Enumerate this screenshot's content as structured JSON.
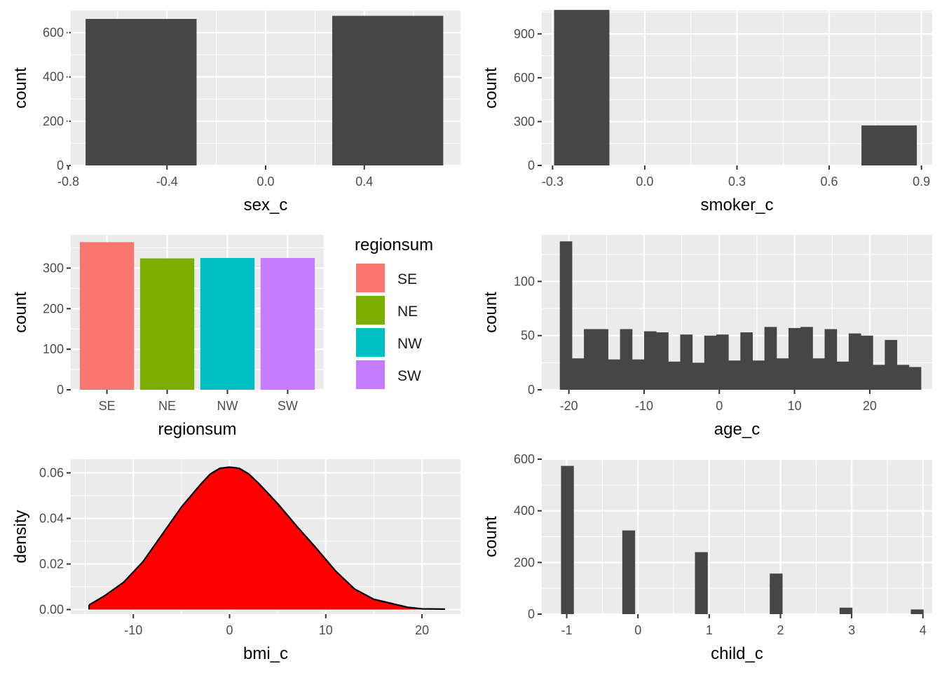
{
  "chart_data": [
    {
      "id": "sex",
      "type": "bar",
      "xlabel": "sex_c",
      "ylabel": "count",
      "xlim": [
        -0.79,
        0.79
      ],
      "ylim": [
        0,
        700
      ],
      "xticks": [
        -0.8,
        -0.4,
        0.0,
        0.4
      ],
      "xtick_labels": [
        "-0.8",
        "-0.4",
        "0.0",
        "0.4"
      ],
      "yticks": [
        0,
        200,
        400,
        600
      ],
      "ytick_labels": [
        "0",
        "200",
        "400",
        "600"
      ],
      "grid": true,
      "fill_color": "#464646",
      "bars": [
        {
          "x0": -0.73,
          "x1": -0.28,
          "value": 662
        },
        {
          "x0": 0.27,
          "x1": 0.72,
          "value": 676
        }
      ]
    },
    {
      "id": "smoker",
      "type": "bar",
      "xlabel": "smoker_c",
      "ylabel": "count",
      "xlim": [
        -0.335,
        0.935
      ],
      "ylim": [
        0,
        1060
      ],
      "xticks": [
        -0.3,
        0.0,
        0.3,
        0.6,
        0.9
      ],
      "xtick_labels": [
        "-0.3",
        "0.0",
        "0.3",
        "0.6",
        "0.9"
      ],
      "yticks": [
        0,
        300,
        600,
        900
      ],
      "ytick_labels": [
        "0",
        "300",
        "600",
        "900"
      ],
      "grid": true,
      "fill_color": "#464646",
      "bars": [
        {
          "x0": -0.295,
          "x1": -0.115,
          "value": 1064
        },
        {
          "x0": 0.705,
          "x1": 0.885,
          "value": 274
        }
      ]
    },
    {
      "id": "region",
      "type": "bar",
      "xlabel": "regionsum",
      "ylabel": "count",
      "categories": [
        "SE",
        "NE",
        "NW",
        "SW"
      ],
      "values": [
        364,
        324,
        325,
        325
      ],
      "colors": [
        "#F8766D",
        "#7CAE00",
        "#00BFC4",
        "#C77CFF"
      ],
      "ylim": [
        0,
        382
      ],
      "yticks": [
        0,
        100,
        200,
        300
      ],
      "ytick_labels": [
        "0",
        "100",
        "200",
        "300"
      ],
      "grid": true,
      "legend": {
        "title": "regionsum",
        "placement": "right",
        "items": [
          {
            "label": "SE",
            "color": "#F8766D"
          },
          {
            "label": "NE",
            "color": "#7CAE00"
          },
          {
            "label": "NW",
            "color": "#00BFC4"
          },
          {
            "label": "SW",
            "color": "#C77CFF"
          }
        ]
      }
    },
    {
      "id": "age",
      "type": "bar",
      "xlabel": "age_c",
      "ylabel": "count",
      "xlim": [
        -23.6,
        28.3
      ],
      "ylim": [
        0,
        143
      ],
      "xticks": [
        -20,
        -10,
        0,
        10,
        20
      ],
      "xtick_labels": [
        "-20",
        "-10",
        "0",
        "10",
        "20"
      ],
      "yticks": [
        0,
        50,
        100
      ],
      "ytick_labels": [
        "0",
        "50",
        "100"
      ],
      "grid": true,
      "fill_color": "#464646",
      "bin_start": -21.2,
      "bin_width": 1.6,
      "values": [
        137,
        29,
        56,
        56,
        28,
        56,
        28,
        54,
        53,
        26,
        51,
        25,
        50,
        51,
        27,
        53,
        27,
        58,
        29,
        57,
        58,
        29,
        56,
        26,
        52,
        50,
        23,
        46,
        23,
        21
      ]
    },
    {
      "id": "bmi",
      "type": "area",
      "xlabel": "bmi_c",
      "ylabel": "density",
      "xlim": [
        -16.5,
        24.0
      ],
      "ylim": [
        -0.002,
        0.066
      ],
      "xticks": [
        -10,
        0,
        10,
        20
      ],
      "xtick_labels": [
        "-10",
        "0",
        "10",
        "20"
      ],
      "yticks": [
        0.0,
        0.02,
        0.04,
        0.06
      ],
      "ytick_labels": [
        "0.00",
        "0.02",
        "0.04",
        "0.06"
      ],
      "grid": true,
      "fill_color": "#FF0000",
      "line_color": "#000000",
      "x": [
        -14.6,
        -13,
        -11,
        -9,
        -7,
        -5,
        -3,
        -2,
        -1,
        0,
        1,
        2,
        3,
        5,
        7,
        9,
        11,
        13,
        15,
        17,
        18.5,
        20,
        22.4
      ],
      "y": [
        0.002,
        0.006,
        0.012,
        0.021,
        0.033,
        0.045,
        0.055,
        0.0595,
        0.062,
        0.0625,
        0.062,
        0.0595,
        0.0555,
        0.0465,
        0.0365,
        0.027,
        0.017,
        0.009,
        0.0045,
        0.0025,
        0.001,
        0.0003,
        0.0002
      ]
    },
    {
      "id": "child",
      "type": "bar",
      "xlabel": "child_c",
      "ylabel": "count",
      "xlim": [
        -1.35,
        4.13
      ],
      "ylim": [
        0,
        600
      ],
      "xticks": [
        -1,
        0,
        1,
        2,
        3,
        4
      ],
      "xtick_labels": [
        "-1",
        "0",
        "1",
        "2",
        "3",
        "4"
      ],
      "yticks": [
        0,
        200,
        400,
        600
      ],
      "ytick_labels": [
        "0",
        "200",
        "400",
        "600"
      ],
      "grid": true,
      "fill_color": "#464646",
      "bar_halfwidth": 0.09,
      "bars": [
        {
          "x": -0.99,
          "value": 574
        },
        {
          "x": -0.13,
          "value": 324
        },
        {
          "x": 0.89,
          "value": 240
        },
        {
          "x": 1.94,
          "value": 157
        },
        {
          "x": 2.92,
          "value": 25
        },
        {
          "x": 3.92,
          "value": 18
        }
      ]
    }
  ]
}
